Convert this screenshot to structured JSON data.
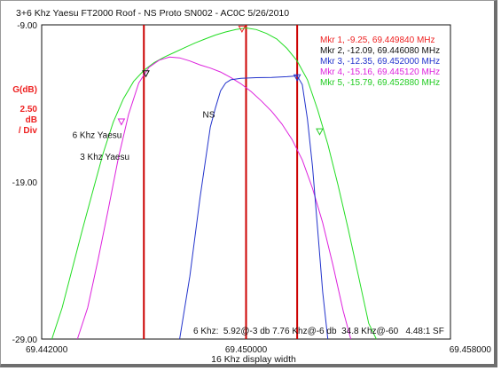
{
  "chart_data": {
    "type": "line",
    "title": "3+6 Khz Yaesu FT2000 Roof - NS Proto SN002 - AC0C 5/26/2010",
    "xlabel": "16 Khz display width",
    "ylabel_lines": [
      "G(dB)",
      "2.50",
      "dB",
      "/ Div"
    ],
    "xlim": [
      69.442,
      69.458
    ],
    "ylim": [
      -29.0,
      -9.0
    ],
    "y_ticks": [
      {
        "value": -9.0,
        "label": "-9.00"
      },
      {
        "value": -19.0,
        "label": "-19.00"
      },
      {
        "value": -29.0,
        "label": "-29.00"
      }
    ],
    "x_ticks": [
      {
        "value": 69.442,
        "label": "69.442000"
      },
      {
        "value": 69.45,
        "label": "69.450000"
      },
      {
        "value": 69.458,
        "label": "69.458000"
      }
    ],
    "grid": false,
    "series": [
      {
        "name": "6 Khz Yaesu",
        "color": "#22dd22",
        "points": [
          [
            69.4424,
            -29.2
          ],
          [
            69.4428,
            -27.0
          ],
          [
            69.4432,
            -24.5
          ],
          [
            69.4436,
            -22.0
          ],
          [
            69.444,
            -19.6
          ],
          [
            69.4444,
            -17.2
          ],
          [
            69.4448,
            -15.2
          ],
          [
            69.4452,
            -13.7
          ],
          [
            69.4456,
            -12.6
          ],
          [
            69.446,
            -11.9
          ],
          [
            69.4464,
            -11.4
          ],
          [
            69.4468,
            -11.05
          ],
          [
            69.4472,
            -10.75
          ],
          [
            69.4476,
            -10.45
          ],
          [
            69.448,
            -10.15
          ],
          [
            69.4484,
            -9.9
          ],
          [
            69.4488,
            -9.65
          ],
          [
            69.4492,
            -9.45
          ],
          [
            69.4496,
            -9.3
          ],
          [
            69.45,
            -9.2
          ],
          [
            69.4504,
            -9.3
          ],
          [
            69.4508,
            -9.55
          ],
          [
            69.4512,
            -9.9
          ],
          [
            69.4516,
            -10.5
          ],
          [
            69.452,
            -11.3
          ],
          [
            69.4524,
            -12.5
          ],
          [
            69.4528,
            -14.4
          ],
          [
            69.4532,
            -16.6
          ],
          [
            69.4536,
            -19.2
          ],
          [
            69.454,
            -22.0
          ],
          [
            69.4544,
            -25.0
          ],
          [
            69.4548,
            -28.0
          ],
          [
            69.4551,
            -29.2
          ]
        ]
      },
      {
        "name": "3 Khz Yaesu",
        "color": "#dd22dd",
        "points": [
          [
            69.4434,
            -29.2
          ],
          [
            69.4438,
            -27.0
          ],
          [
            69.4442,
            -24.0
          ],
          [
            69.4446,
            -20.8
          ],
          [
            69.445,
            -17.5
          ],
          [
            69.4454,
            -14.7
          ],
          [
            69.4458,
            -12.7
          ],
          [
            69.4462,
            -11.7
          ],
          [
            69.4466,
            -11.25
          ],
          [
            69.447,
            -11.05
          ],
          [
            69.4474,
            -11.1
          ],
          [
            69.4478,
            -11.3
          ],
          [
            69.4482,
            -11.55
          ],
          [
            69.4486,
            -11.75
          ],
          [
            69.449,
            -12.0
          ],
          [
            69.4494,
            -12.35
          ],
          [
            69.4498,
            -12.75
          ],
          [
            69.4502,
            -13.25
          ],
          [
            69.4506,
            -13.85
          ],
          [
            69.451,
            -14.5
          ],
          [
            69.4514,
            -15.3
          ],
          [
            69.4518,
            -16.3
          ],
          [
            69.4522,
            -17.6
          ],
          [
            69.4526,
            -19.4
          ],
          [
            69.453,
            -21.6
          ],
          [
            69.4534,
            -24.3
          ],
          [
            69.4538,
            -27.2
          ],
          [
            69.4541,
            -29.2
          ]
        ]
      },
      {
        "name": "NS",
        "color": "#2233cc",
        "points": [
          [
            69.4474,
            -29.2
          ],
          [
            69.4478,
            -25.0
          ],
          [
            69.4482,
            -20.0
          ],
          [
            69.4486,
            -15.5
          ],
          [
            69.4488,
            -14.3
          ],
          [
            69.449,
            -13.2
          ],
          [
            69.4492,
            -12.7
          ],
          [
            69.4494,
            -12.5
          ],
          [
            69.4498,
            -12.4
          ],
          [
            69.4504,
            -12.36
          ],
          [
            69.451,
            -12.35
          ],
          [
            69.4516,
            -12.3
          ],
          [
            69.452,
            -12.25
          ],
          [
            69.4522,
            -12.8
          ],
          [
            69.4524,
            -15.0
          ],
          [
            69.4526,
            -18.0
          ],
          [
            69.4528,
            -22.0
          ],
          [
            69.453,
            -26.0
          ],
          [
            69.4532,
            -29.2
          ]
        ]
      }
    ],
    "markers": [
      {
        "label": "Mkr 1, -9.25, 69.449840 MHz",
        "x": 69.44984,
        "y": -9.25,
        "color": "#ee2222",
        "series": "6 Khz Yaesu"
      },
      {
        "label": "Mkr 2, -12.09, 69.446080 MHz",
        "x": 69.44608,
        "y": -12.09,
        "color": "#111111",
        "series": "6 Khz Yaesu"
      },
      {
        "label": "Mkr 3, -12.35, 69.452000 MHz",
        "x": 69.452,
        "y": -12.35,
        "color": "#2233cc",
        "series": "NS"
      },
      {
        "label": "Mkr 4, -15.16, 69.445120 MHz",
        "x": 69.44512,
        "y": -15.16,
        "color": "#dd22dd",
        "series": "3 Khz Yaesu"
      },
      {
        "label": "Mkr 5, -15.79, 69.452880 MHz",
        "x": 69.45288,
        "y": -15.79,
        "color": "#22cc22",
        "series": "6 Khz Yaesu"
      }
    ],
    "vertical_lines": [
      {
        "x": 69.446,
        "color": "#cc0000"
      },
      {
        "x": 69.452,
        "color": "#cc0000"
      }
    ],
    "center_line": {
      "x": 69.45,
      "color": "#cc0000"
    },
    "annotations": [
      {
        "text": "6 Khz Yaesu",
        "x": 69.4432,
        "y": -16.2
      },
      {
        "text": "3 Khz Yaesu",
        "x": 69.4435,
        "y": -17.6
      },
      {
        "text": "NS",
        "x": 69.4483,
        "y": -14.9
      }
    ],
    "legend_position": "top-right",
    "summary": "6 Khz:  5.92@-3 db 7.76 Khz@-6 db  34.8 Khz@-60   4.48:1 SF"
  }
}
